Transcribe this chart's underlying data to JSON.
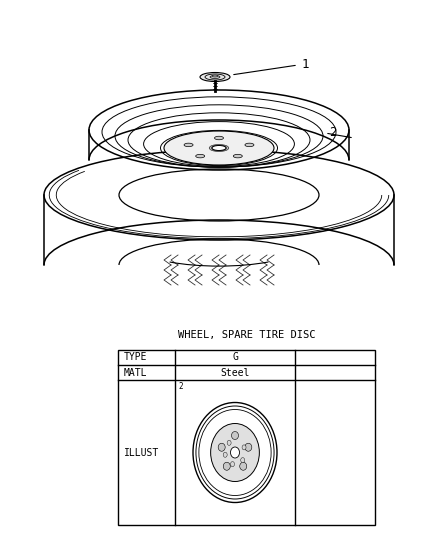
{
  "title": "WHEEL, SPARE TIRE DISC",
  "bg_color": "#ffffff",
  "font_color": "#000000",
  "line_color": "#000000",
  "part_label_1": "1",
  "part_label_2": "2",
  "table_rows": [
    [
      "TYPE",
      "G",
      ""
    ],
    [
      "MATL",
      "Steel",
      ""
    ]
  ],
  "illust_label": "ILLUST",
  "figsize": [
    4.38,
    5.33
  ],
  "dpi": 100
}
